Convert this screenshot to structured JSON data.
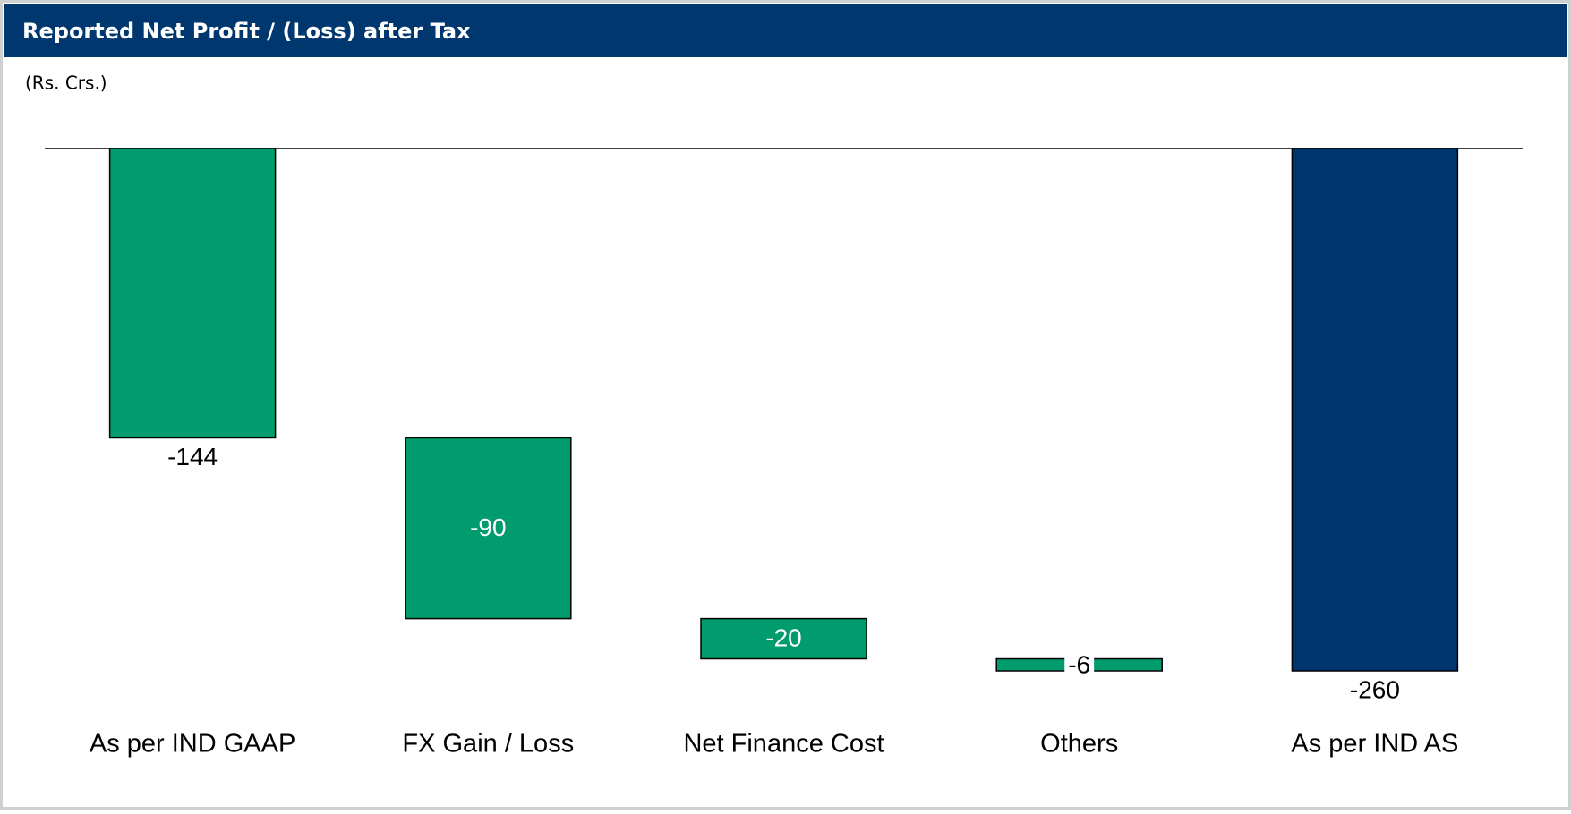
{
  "chart_data": {
    "type": "waterfall",
    "title": "Reported Net Profit / (Loss) after Tax",
    "subtitle": "(Rs. Crs.)",
    "categories": [
      "As per IND GAAP",
      "FX Gain / Loss",
      "Net Finance Cost",
      "Others",
      "As per IND AS"
    ],
    "values": [
      -144,
      -90,
      -20,
      -6,
      -260
    ],
    "measure": [
      "absolute",
      "relative",
      "relative",
      "relative",
      "total"
    ],
    "colors": [
      "#009c6e",
      "#009c6e",
      "#009c6e",
      "#009c6e",
      "#00366f"
    ],
    "ylim": [
      -260,
      0
    ]
  }
}
